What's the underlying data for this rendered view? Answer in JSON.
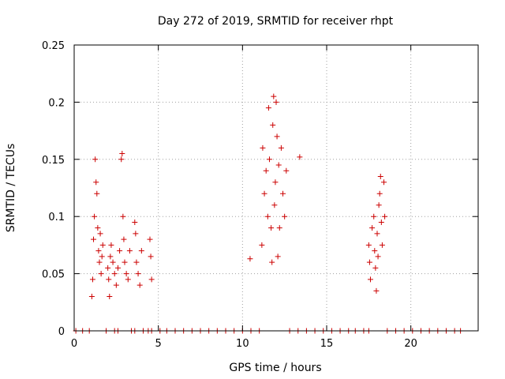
{
  "chart_data": {
    "type": "scatter",
    "title": "Day 272 of 2019, SRMTID for receiver rhpt",
    "xlabel": "GPS time / hours",
    "ylabel": "SRMTID / TECUs",
    "xlim": [
      0,
      24
    ],
    "ylim": [
      0,
      0.25
    ],
    "x_ticks": [
      0,
      5,
      10,
      15,
      20
    ],
    "x_tick_labels": [
      "0",
      "5",
      "10",
      "15",
      "20"
    ],
    "y_ticks": [
      0,
      0.05,
      0.1,
      0.15,
      0.2,
      0.25
    ],
    "y_tick_labels": [
      "0",
      "0.05",
      "0.1",
      "0.15",
      "0.2",
      "0.25"
    ],
    "grid": true,
    "marker": "+",
    "color": "#cc0000",
    "series": [
      {
        "points": [
          [
            1.05,
            0.03
          ],
          [
            1.1,
            0.045
          ],
          [
            1.15,
            0.08
          ],
          [
            1.2,
            0.1
          ],
          [
            1.25,
            0.15
          ],
          [
            1.3,
            0.13
          ],
          [
            1.35,
            0.12
          ],
          [
            1.4,
            0.09
          ],
          [
            1.45,
            0.07
          ],
          [
            1.5,
            0.06
          ],
          [
            1.55,
            0.085
          ],
          [
            1.6,
            0.05
          ],
          [
            1.65,
            0.065
          ],
          [
            1.7,
            0.075
          ],
          [
            2.0,
            0.055
          ],
          [
            2.05,
            0.045
          ],
          [
            2.1,
            0.03
          ],
          [
            2.15,
            0.065
          ],
          [
            2.2,
            0.075
          ],
          [
            2.3,
            0.06
          ],
          [
            2.4,
            0.05
          ],
          [
            2.5,
            0.04
          ],
          [
            2.6,
            0.055
          ],
          [
            2.7,
            0.07
          ],
          [
            2.8,
            0.15
          ],
          [
            2.85,
            0.155
          ],
          [
            2.9,
            0.1
          ],
          [
            2.95,
            0.08
          ],
          [
            3.0,
            0.06
          ],
          [
            3.1,
            0.05
          ],
          [
            3.2,
            0.045
          ],
          [
            3.3,
            0.07
          ],
          [
            3.6,
            0.095
          ],
          [
            3.65,
            0.085
          ],
          [
            3.7,
            0.06
          ],
          [
            3.8,
            0.05
          ],
          [
            3.9,
            0.04
          ],
          [
            4.0,
            0.07
          ],
          [
            4.5,
            0.08
          ],
          [
            4.55,
            0.065
          ],
          [
            4.6,
            0.045
          ],
          [
            10.45,
            0.063
          ],
          [
            11.15,
            0.075
          ],
          [
            11.2,
            0.16
          ],
          [
            11.3,
            0.12
          ],
          [
            11.4,
            0.14
          ],
          [
            11.5,
            0.1
          ],
          [
            11.55,
            0.195
          ],
          [
            11.6,
            0.15
          ],
          [
            11.7,
            0.09
          ],
          [
            11.75,
            0.06
          ],
          [
            11.8,
            0.18
          ],
          [
            11.85,
            0.205
          ],
          [
            11.9,
            0.11
          ],
          [
            11.95,
            0.13
          ],
          [
            12.0,
            0.2
          ],
          [
            12.05,
            0.17
          ],
          [
            12.1,
            0.065
          ],
          [
            12.15,
            0.145
          ],
          [
            12.2,
            0.09
          ],
          [
            12.3,
            0.16
          ],
          [
            12.4,
            0.12
          ],
          [
            12.5,
            0.1
          ],
          [
            12.6,
            0.14
          ],
          [
            13.4,
            0.152
          ],
          [
            17.5,
            0.075
          ],
          [
            17.55,
            0.06
          ],
          [
            17.6,
            0.045
          ],
          [
            17.7,
            0.09
          ],
          [
            17.8,
            0.1
          ],
          [
            17.85,
            0.07
          ],
          [
            17.9,
            0.055
          ],
          [
            17.95,
            0.035
          ],
          [
            18.0,
            0.085
          ],
          [
            18.05,
            0.065
          ],
          [
            18.1,
            0.11
          ],
          [
            18.15,
            0.12
          ],
          [
            18.2,
            0.135
          ],
          [
            18.25,
            0.095
          ],
          [
            18.3,
            0.075
          ],
          [
            18.4,
            0.13
          ],
          [
            18.45,
            0.1
          ],
          [
            0.1,
            0
          ],
          [
            0.5,
            0
          ],
          [
            0.9,
            0
          ],
          [
            1.9,
            0
          ],
          [
            2.4,
            0
          ],
          [
            2.6,
            0
          ],
          [
            3.4,
            0
          ],
          [
            3.6,
            0
          ],
          [
            4.1,
            0
          ],
          [
            4.4,
            0
          ],
          [
            4.6,
            0
          ],
          [
            5.1,
            0
          ],
          [
            5.5,
            0
          ],
          [
            6.0,
            0
          ],
          [
            6.5,
            0
          ],
          [
            7.0,
            0
          ],
          [
            7.5,
            0
          ],
          [
            8.0,
            0
          ],
          [
            8.5,
            0
          ],
          [
            9.0,
            0
          ],
          [
            9.5,
            0
          ],
          [
            10.0,
            0
          ],
          [
            10.5,
            0
          ],
          [
            11.0,
            0
          ],
          [
            12.8,
            0
          ],
          [
            13.3,
            0
          ],
          [
            13.8,
            0
          ],
          [
            14.3,
            0
          ],
          [
            14.8,
            0
          ],
          [
            15.3,
            0
          ],
          [
            15.8,
            0
          ],
          [
            16.3,
            0
          ],
          [
            16.7,
            0
          ],
          [
            17.2,
            0
          ],
          [
            17.5,
            0
          ],
          [
            18.6,
            0
          ],
          [
            19.1,
            0
          ],
          [
            19.6,
            0
          ],
          [
            20.1,
            0
          ],
          [
            20.6,
            0
          ],
          [
            21.1,
            0
          ],
          [
            21.6,
            0
          ],
          [
            22.1,
            0
          ],
          [
            22.6,
            0
          ],
          [
            22.95,
            0
          ]
        ]
      }
    ]
  }
}
